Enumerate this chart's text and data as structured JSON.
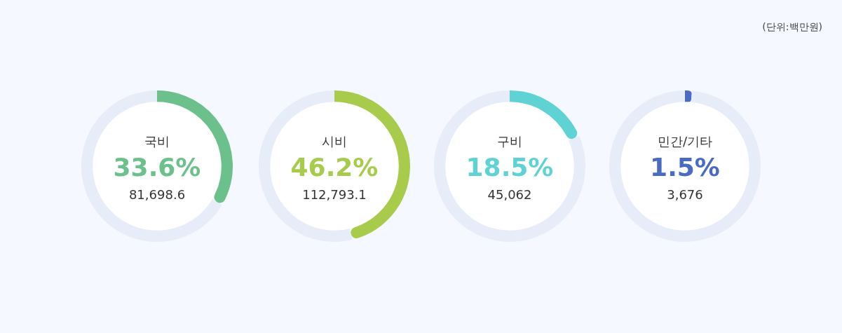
{
  "chart_data": [
    {
      "type": "donut",
      "categories": [
        "국비",
        null
      ],
      "values": [
        33.6,
        66.4
      ],
      "colors": [
        "#6cc08b",
        "#e6ecf8"
      ],
      "value_labels": [
        "33.6%",
        null
      ],
      "annotations": [
        "81,698.6"
      ]
    },
    {
      "type": "donut",
      "categories": [
        "시비",
        null
      ],
      "values": [
        46.2,
        53.8
      ],
      "colors": [
        "#a8cb4b",
        "#e6ecf8"
      ],
      "value_labels": [
        "46.2%",
        null
      ],
      "annotations": [
        "112,793.1"
      ]
    },
    {
      "type": "donut",
      "categories": [
        "구비",
        null
      ],
      "values": [
        18.5,
        81.5
      ],
      "colors": [
        "#5fd3d3",
        "#e6ecf8"
      ],
      "value_labels": [
        "18.5%",
        null
      ],
      "annotations": [
        "45,062"
      ]
    },
    {
      "type": "donut",
      "categories": [
        "민간/기타",
        null
      ],
      "values": [
        1.5,
        98.5
      ],
      "colors": [
        "#4a6bc4",
        "#e6ecf8"
      ],
      "value_labels": [
        "1.5%",
        null
      ],
      "annotations": [
        "3,676"
      ]
    },
    {
      "type": "other",
      "annotations": [
        "(단위:백만원)"
      ]
    }
  ]
}
